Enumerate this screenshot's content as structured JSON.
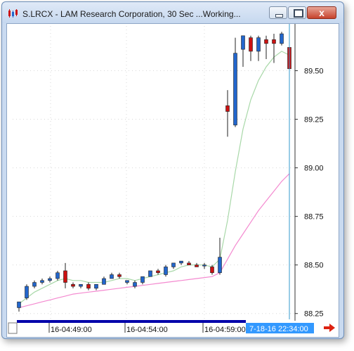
{
  "window": {
    "title": "S.LRCX - LAM Research Corporation, 30 Sec ...Working...",
    "minimize_label": "minimize",
    "maximize_label": "maximize",
    "close_label": "x"
  },
  "chart_data": {
    "type": "candlestick",
    "symbol": "S.LRCX",
    "interval": "30 Sec",
    "y_ticks": [
      "89.50",
      "89.25",
      "89.00",
      "88.75",
      "88.50",
      "88.25"
    ],
    "y_tick_values": [
      89.5,
      89.25,
      89.0,
      88.75,
      88.5,
      88.25
    ],
    "ylim": [
      88.22,
      89.73
    ],
    "x_tick_labels": [
      "16-04:49:00",
      "16-04:54:00",
      "16-04:59:00"
    ],
    "cursor_label": "7-18-16 22:34:00",
    "grid": true,
    "colors": {
      "up": "#2266cc",
      "down": "#cc1111",
      "fast_ma": "#a8d8a8",
      "slow_ma": "#f48ad0",
      "cursor": "#3399cc",
      "scrollbar": "#0000aa",
      "label_bg": "#3399ff",
      "arrow": "#dd2211"
    },
    "candles": [
      {
        "o": 88.28,
        "h": 88.31,
        "l": 88.26,
        "c": 88.31
      },
      {
        "o": 88.33,
        "h": 88.4,
        "l": 88.32,
        "c": 88.39
      },
      {
        "o": 88.39,
        "h": 88.42,
        "l": 88.38,
        "c": 88.41
      },
      {
        "o": 88.41,
        "h": 88.43,
        "l": 88.4,
        "c": 88.42
      },
      {
        "o": 88.42,
        "h": 88.44,
        "l": 88.41,
        "c": 88.43
      },
      {
        "o": 88.43,
        "h": 88.47,
        "l": 88.42,
        "c": 88.46
      },
      {
        "o": 88.47,
        "h": 88.51,
        "l": 88.38,
        "c": 88.41
      },
      {
        "o": 88.4,
        "h": 88.41,
        "l": 88.38,
        "c": 88.39
      },
      {
        "o": 88.39,
        "h": 88.4,
        "l": 88.38,
        "c": 88.4
      },
      {
        "o": 88.4,
        "h": 88.41,
        "l": 88.37,
        "c": 88.38
      },
      {
        "o": 88.38,
        "h": 88.4,
        "l": 88.37,
        "c": 88.4
      },
      {
        "o": 88.4,
        "h": 88.44,
        "l": 88.4,
        "c": 88.43
      },
      {
        "o": 88.43,
        "h": 88.46,
        "l": 88.43,
        "c": 88.45
      },
      {
        "o": 88.45,
        "h": 88.46,
        "l": 88.43,
        "c": 88.44
      },
      {
        "o": 88.41,
        "h": 88.42,
        "l": 88.4,
        "c": 88.42
      },
      {
        "o": 88.39,
        "h": 88.42,
        "l": 88.38,
        "c": 88.41
      },
      {
        "o": 88.41,
        "h": 88.44,
        "l": 88.4,
        "c": 88.44
      },
      {
        "o": 88.44,
        "h": 88.47,
        "l": 88.44,
        "c": 88.47
      },
      {
        "o": 88.47,
        "h": 88.48,
        "l": 88.45,
        "c": 88.46
      },
      {
        "o": 88.45,
        "h": 88.5,
        "l": 88.44,
        "c": 88.49
      },
      {
        "o": 88.49,
        "h": 88.51,
        "l": 88.48,
        "c": 88.51
      },
      {
        "o": 88.51,
        "h": 88.52,
        "l": 88.5,
        "c": 88.52
      },
      {
        "o": 88.51,
        "h": 88.52,
        "l": 88.5,
        "c": 88.5
      },
      {
        "o": 88.5,
        "h": 88.51,
        "l": 88.49,
        "c": 88.49
      },
      {
        "o": 88.5,
        "h": 88.51,
        "l": 88.48,
        "c": 88.5
      },
      {
        "o": 88.49,
        "h": 88.5,
        "l": 88.45,
        "c": 88.46
      },
      {
        "o": 88.46,
        "h": 88.64,
        "l": 88.45,
        "c": 88.54
      },
      {
        "o": 89.32,
        "h": 89.4,
        "l": 89.16,
        "c": 89.29
      },
      {
        "o": 89.22,
        "h": 89.67,
        "l": 89.21,
        "c": 89.59
      },
      {
        "o": 89.61,
        "h": 89.68,
        "l": 89.52,
        "c": 89.68
      },
      {
        "o": 89.67,
        "h": 89.68,
        "l": 89.55,
        "c": 89.6
      },
      {
        "o": 89.6,
        "h": 89.68,
        "l": 89.55,
        "c": 89.67
      },
      {
        "o": 89.66,
        "h": 89.68,
        "l": 89.56,
        "c": 89.64
      },
      {
        "o": 89.66,
        "h": 89.69,
        "l": 89.54,
        "c": 89.64
      },
      {
        "o": 89.64,
        "h": 89.7,
        "l": 89.63,
        "c": 89.69
      },
      {
        "o": 89.62,
        "h": 89.64,
        "l": 89.47,
        "c": 89.51
      }
    ],
    "fast_ma": [
      88.3,
      88.33,
      88.36,
      88.38,
      88.4,
      88.42,
      88.43,
      88.42,
      88.42,
      88.41,
      88.41,
      88.41,
      88.42,
      88.43,
      88.43,
      88.42,
      88.43,
      88.44,
      88.45,
      88.46,
      88.47,
      88.49,
      88.5,
      88.5,
      88.5,
      88.49,
      88.53,
      88.73,
      88.98,
      89.2,
      89.35,
      89.45,
      89.52,
      89.57,
      89.6,
      89.58
    ],
    "slow_ma": [
      88.28,
      88.29,
      88.3,
      88.31,
      88.32,
      88.33,
      88.34,
      88.35,
      88.355,
      88.36,
      88.365,
      88.37,
      88.375,
      88.38,
      88.385,
      88.39,
      88.395,
      88.4,
      88.405,
      88.41,
      88.415,
      88.42,
      88.425,
      88.43,
      88.435,
      88.44,
      88.46,
      88.53,
      88.6,
      88.66,
      88.72,
      88.78,
      88.83,
      88.88,
      88.93,
      88.97
    ]
  }
}
